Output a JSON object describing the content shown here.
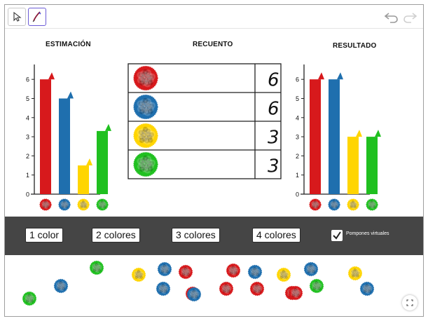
{
  "toolbar": {
    "tools": [
      {
        "name": "move-tool",
        "icon": "pointer-icon"
      },
      {
        "name": "pen-tool",
        "icon": "pen-icon"
      }
    ],
    "undo_icon": "undo-icon",
    "redo_icon": "redo-icon"
  },
  "colors": {
    "red": "#d7191c",
    "blue": "#1f6fae",
    "yellow": "#ffd500",
    "green": "#20c020",
    "axis": "#222222",
    "control_bar": "#454545"
  },
  "estimacion": {
    "title": "ESTIMACIÓN"
  },
  "recuento": {
    "title": "RECUENTO",
    "rows": [
      {
        "color": "red",
        "count": "6"
      },
      {
        "color": "blue",
        "count": "6"
      },
      {
        "color": "yellow",
        "count": "3"
      },
      {
        "color": "green",
        "count": "3"
      }
    ]
  },
  "resultado": {
    "title": "RESULTADO"
  },
  "chart_data": [
    {
      "type": "bar",
      "title": "ESTIMACIÓN",
      "categories": [
        "red",
        "blue",
        "yellow",
        "green"
      ],
      "values": [
        6,
        5,
        1.5,
        3.3
      ],
      "ylim": [
        0,
        6.5
      ],
      "yticks": [
        "0",
        "1",
        "2",
        "3",
        "4",
        "5",
        "6"
      ],
      "grid": false
    },
    {
      "type": "bar",
      "title": "RESULTADO",
      "categories": [
        "red",
        "blue",
        "yellow",
        "green"
      ],
      "values": [
        6,
        6,
        3,
        3
      ],
      "ylim": [
        0,
        6.5
      ],
      "yticks": [
        "0",
        "1",
        "2",
        "3",
        "4",
        "5",
        "6"
      ],
      "grid": false
    }
  ],
  "controls": {
    "buttons": [
      "1 color",
      "2 colores",
      "3 colores",
      "4 colores"
    ],
    "checkbox_label": "Pompones virtuales",
    "checkbox_checked": true
  },
  "tray": {
    "pompoms": [
      "green",
      "blue",
      "green",
      "yellow",
      "blue",
      "red",
      "red",
      "blue",
      "red",
      "red",
      "blue",
      "red",
      "yellow",
      "red",
      "blue",
      "green",
      "yellow",
      "blue",
      "red",
      "blue"
    ]
  },
  "fullscreen_icon": "fullscreen-icon"
}
